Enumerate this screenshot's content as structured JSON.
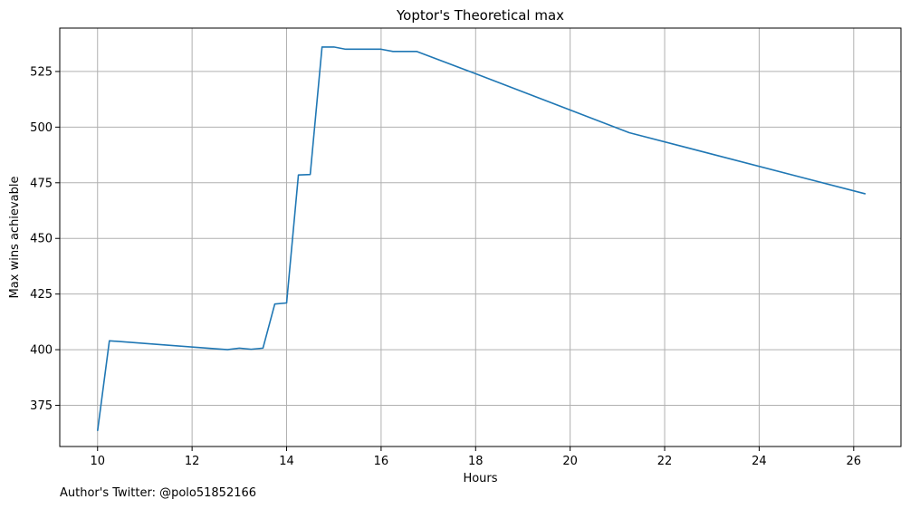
{
  "chart_data": {
    "type": "line",
    "title": "Yoptor's Theoretical max",
    "xlabel": "Hours",
    "ylabel": "Max wins achievable",
    "xlim": [
      9.2,
      27.0
    ],
    "ylim": [
      356.5,
      544.5
    ],
    "xticks": [
      10,
      12,
      14,
      16,
      18,
      20,
      22,
      24,
      26
    ],
    "yticks": [
      375,
      400,
      425,
      450,
      475,
      500,
      525
    ],
    "grid": true,
    "line_color": "#1f77b4",
    "series": [
      {
        "x": [
          10.0,
          10.25,
          12.75,
          13.0,
          13.25,
          13.5,
          13.75,
          14.0,
          14.25,
          14.5,
          14.75,
          15.0,
          15.25,
          15.5,
          15.75,
          16.0,
          16.25,
          16.5,
          16.75,
          18.0,
          21.25,
          26.25
        ],
        "y": [
          363.5,
          404.0,
          400.0,
          400.7,
          400.2,
          400.7,
          420.5,
          421.0,
          478.5,
          478.7,
          536.0,
          536.0,
          535.0,
          535.0,
          535.0,
          535.0,
          534.0,
          534.0,
          534.0,
          524.0,
          497.5,
          470.0
        ]
      }
    ]
  },
  "footnote": "Author's Twitter: @polo51852166"
}
